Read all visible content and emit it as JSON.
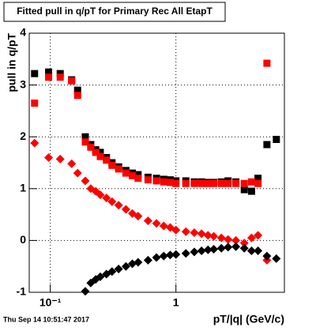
{
  "chart_data": {
    "type": "scatter",
    "title": "Fitted pull in q/pT for Primary Rec All EtapT",
    "x_label": "pT/|q| (GeV/c)",
    "y_label": "pull in q/pT",
    "timestamp": "Thu Sep 14 10:51:47 2017",
    "x": [
      0.075,
      0.097,
      0.12,
      0.148,
      0.165,
      0.19,
      0.21,
      0.23,
      0.25,
      0.28,
      0.31,
      0.35,
      0.4,
      0.45,
      0.5,
      0.6,
      0.7,
      0.8,
      0.9,
      1.0,
      1.2,
      1.4,
      1.6,
      1.8,
      2.0,
      2.3,
      2.6,
      3.0,
      3.5,
      4.0,
      4.5,
      5.3,
      6.3
    ],
    "series": [
      {
        "color": "#000000",
        "marker": "square",
        "values": [
          3.22,
          3.25,
          3.22,
          3.1,
          2.9,
          2.0,
          1.85,
          1.75,
          1.7,
          1.6,
          1.5,
          1.42,
          1.35,
          1.3,
          1.27,
          1.22,
          1.2,
          1.18,
          1.17,
          1.15,
          1.15,
          1.13,
          1.13,
          1.12,
          1.12,
          1.13,
          1.15,
          1.13,
          0.98,
          0.95,
          1.2,
          1.85,
          1.95
        ]
      },
      {
        "color": "#ff0000",
        "marker": "square",
        "values": [
          2.65,
          3.15,
          3.15,
          3.08,
          2.8,
          1.9,
          1.8,
          1.7,
          1.62,
          1.55,
          1.45,
          1.38,
          1.3,
          1.25,
          1.2,
          1.17,
          1.15,
          1.13,
          1.12,
          1.1,
          1.1,
          1.1,
          1.1,
          1.1,
          1.1,
          1.1,
          1.1,
          1.1,
          1.1,
          1.13,
          1.1,
          3.42,
          null
        ]
      },
      {
        "color": "#ff0000",
        "marker": "diamond",
        "values": [
          1.88,
          1.6,
          1.57,
          1.48,
          1.3,
          1.15,
          1.0,
          0.95,
          0.88,
          0.82,
          0.75,
          0.68,
          0.6,
          0.52,
          0.47,
          0.38,
          0.33,
          0.28,
          0.25,
          0.2,
          0.17,
          0.15,
          0.13,
          0.1,
          0.08,
          0.05,
          0.02,
          0.0,
          -0.05,
          0.05,
          0.1,
          -0.38,
          null
        ]
      },
      {
        "color": "#000000",
        "marker": "diamond",
        "values": [
          null,
          null,
          null,
          null,
          null,
          -0.98,
          -0.82,
          -0.75,
          -0.7,
          -0.65,
          -0.6,
          -0.55,
          -0.5,
          -0.45,
          -0.42,
          -0.38,
          -0.33,
          -0.3,
          -0.28,
          -0.27,
          -0.25,
          -0.22,
          -0.2,
          -0.18,
          -0.17,
          -0.15,
          -0.13,
          -0.12,
          -0.15,
          -0.2,
          -0.2,
          -0.3,
          -0.35
        ]
      }
    ],
    "xlim": [
      0.068,
      7.3
    ],
    "log_x": true,
    "xticks": [
      {
        "value": 0.1,
        "label": "10⁻¹"
      },
      1
    ],
    "ylim": [
      -1,
      4
    ],
    "yticks": [
      -1,
      0,
      1,
      2,
      3,
      4
    ],
    "grid": true
  }
}
